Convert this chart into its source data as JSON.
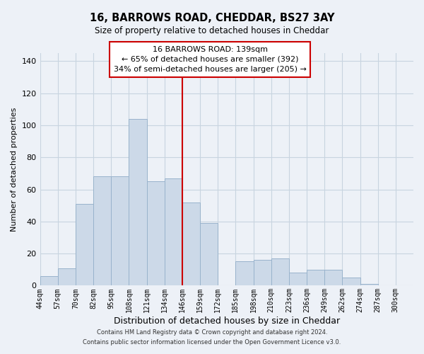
{
  "title": "16, BARROWS ROAD, CHEDDAR, BS27 3AY",
  "subtitle": "Size of property relative to detached houses in Cheddar",
  "xlabel": "Distribution of detached houses by size in Cheddar",
  "ylabel": "Number of detached properties",
  "footer_lines": [
    "Contains HM Land Registry data © Crown copyright and database right 2024.",
    "Contains public sector information licensed under the Open Government Licence v3.0."
  ],
  "bar_labels": [
    "44sqm",
    "57sqm",
    "70sqm",
    "82sqm",
    "95sqm",
    "108sqm",
    "121sqm",
    "134sqm",
    "146sqm",
    "159sqm",
    "172sqm",
    "185sqm",
    "198sqm",
    "210sqm",
    "223sqm",
    "236sqm",
    "249sqm",
    "262sqm",
    "274sqm",
    "287sqm",
    "300sqm"
  ],
  "bar_heights": [
    6,
    11,
    51,
    68,
    68,
    104,
    65,
    67,
    52,
    39,
    0,
    15,
    16,
    17,
    8,
    10,
    10,
    5,
    1,
    0,
    0
  ],
  "bar_color": "#ccd9e8",
  "bar_edge_color": "#99b3cc",
  "ylim": [
    0,
    145
  ],
  "yticks": [
    0,
    20,
    40,
    60,
    80,
    100,
    120,
    140
  ],
  "vline_x_index": 8,
  "vline_color": "#cc0000",
  "annotation_title": "16 BARROWS ROAD: 139sqm",
  "annotation_line1": "← 65% of detached houses are smaller (392)",
  "annotation_line2": "34% of semi-detached houses are larger (205) →",
  "background_color": "#edf1f7",
  "plot_bg_color": "#edf1f7",
  "grid_color": "#c8d4e0"
}
